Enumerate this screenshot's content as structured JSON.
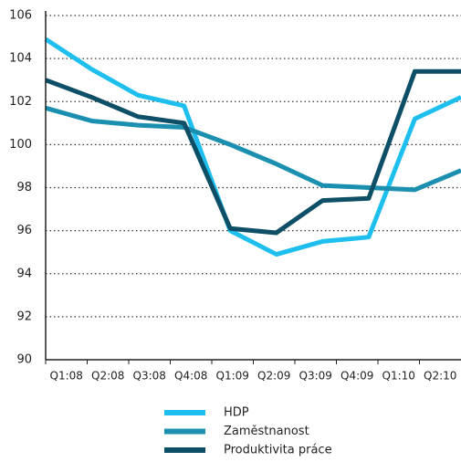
{
  "chart_data": {
    "type": "line",
    "categories": [
      "Q1:08",
      "Q2:08",
      "Q3:08",
      "Q4:08",
      "Q1:09",
      "Q2:09",
      "Q3:09",
      "Q4:09",
      "Q1:10",
      "Q2:10"
    ],
    "series": [
      {
        "name": "HDP",
        "color": "#1ebfef",
        "values": [
          104.9,
          103.5,
          102.3,
          101.8,
          96.0,
          94.9,
          95.5,
          95.7,
          101.2,
          102.2
        ]
      },
      {
        "name": "Zaměstnanost",
        "color": "#1a8fb0",
        "values": [
          101.7,
          101.1,
          100.9,
          100.8,
          100.0,
          99.1,
          98.1,
          98.0,
          97.9,
          98.8
        ]
      },
      {
        "name": "Produktivita práce",
        "color": "#0d4f66",
        "values": [
          103.0,
          102.2,
          101.3,
          101.0,
          96.1,
          95.9,
          97.4,
          97.5,
          103.4,
          103.4
        ]
      }
    ],
    "ylim": [
      90,
      106
    ],
    "yticks": [
      90,
      92,
      94,
      96,
      98,
      100,
      102,
      104,
      106
    ],
    "grid": true,
    "legend": "bottom"
  }
}
